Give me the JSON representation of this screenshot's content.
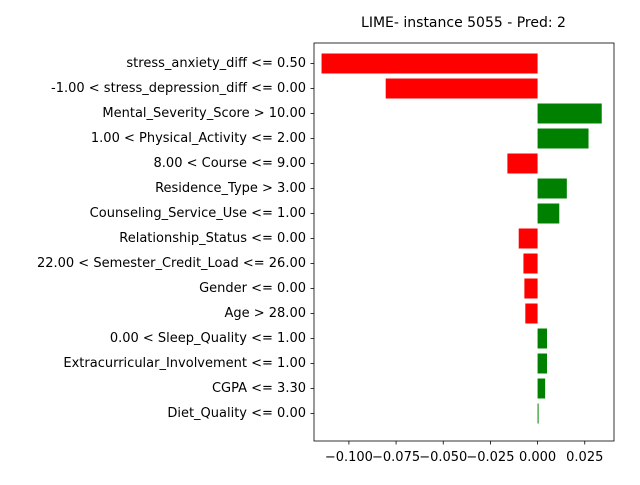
{
  "chart_data": {
    "type": "bar",
    "orientation": "horizontal",
    "title": "LIME- instance 5055 - Pred: 2",
    "xlabel": "",
    "ylabel": "",
    "xlim": [
      -0.1185,
      0.0405
    ],
    "xticks": [
      -0.1,
      -0.075,
      -0.05,
      -0.025,
      0.0,
      0.025
    ],
    "xtick_labels": [
      "−0.100",
      "−0.075",
      "−0.050",
      "−0.025",
      "0.000",
      "0.025"
    ],
    "positive_color": "#008000",
    "negative_color": "#ff0000",
    "categories": [
      "stress_anxiety_diff <= 0.50",
      "-1.00 < stress_depression_diff <= 0.00",
      "Mental_Severity_Score > 10.00",
      "1.00 < Physical_Activity <= 2.00",
      "8.00 < Course <= 9.00",
      "Residence_Type > 3.00",
      "Counseling_Service_Use <= 1.00",
      "Relationship_Status <= 0.00",
      "22.00 < Semester_Credit_Load <= 26.00",
      "Gender <= 0.00",
      "Age > 28.00",
      "0.00 < Sleep_Quality <= 1.00",
      "Extracurricular_Involvement <= 1.00",
      "CGPA <= 3.30",
      "Diet_Quality <= 0.00"
    ],
    "values": [
      -0.1145,
      -0.0805,
      0.034,
      0.027,
      -0.016,
      0.0155,
      0.0115,
      -0.01,
      -0.0075,
      -0.007,
      -0.0065,
      0.005,
      0.005,
      0.004,
      0.0005
    ]
  }
}
